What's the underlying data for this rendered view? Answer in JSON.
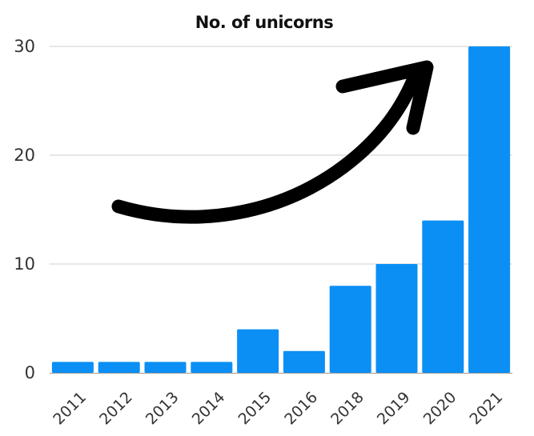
{
  "chart_data": {
    "type": "bar",
    "title": "No. of unicorns",
    "xlabel": "",
    "ylabel": "",
    "categories": [
      "2011",
      "2012",
      "2013",
      "2014",
      "2015",
      "2016",
      "2018",
      "2019",
      "2020",
      "2021"
    ],
    "values": [
      1,
      1,
      1,
      1,
      4,
      2,
      8,
      10,
      14,
      30
    ],
    "ylim": [
      0,
      30
    ],
    "yticks": [
      "0",
      "10",
      "20",
      "30"
    ],
    "grid": true,
    "bar_color": "#0b8ff5",
    "annotation_icon": "curved-arrow-up-right-icon"
  }
}
